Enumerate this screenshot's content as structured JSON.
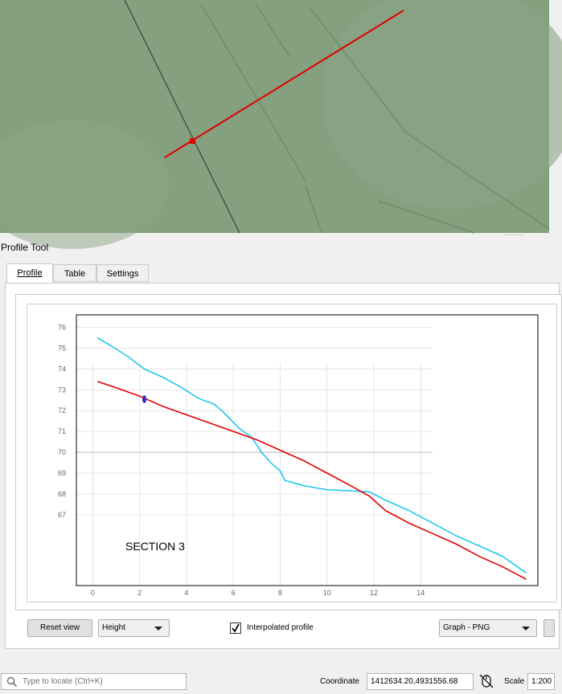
{
  "dock": {
    "title": "Profile Tool"
  },
  "tabs": [
    {
      "label": "Profile"
    },
    {
      "label": "Table"
    },
    {
      "label": "Settings"
    }
  ],
  "chart_overlay_label": "SECTION 3",
  "controls": {
    "reset_view": "Reset view",
    "height_combo": "Height",
    "interpolated_label": "Interpolated profile",
    "interpolated_checked": true,
    "export_combo": "Graph - PNG"
  },
  "statusbar": {
    "locator_placeholder": "Type to locate (Ctrl+K)",
    "coordinate_label": "Coordinate",
    "coordinate_value": "1412634.20,4931556.68",
    "scale_label": "Scale",
    "scale_value": "1:200"
  },
  "colors": {
    "map_bg": "#84a07f",
    "profile_red": "#e00000",
    "profile_cyan": "#20c8f0",
    "marker_blue": "#3030c0"
  },
  "chart_data": {
    "type": "line",
    "title": "",
    "xlabel": "",
    "ylabel": "",
    "x_ticks": [
      0,
      2,
      4,
      6,
      8,
      10,
      12,
      14
    ],
    "y_ticks": [
      76,
      75,
      74,
      73,
      72,
      71,
      70,
      69,
      68,
      67
    ],
    "xlim": [
      -0.7,
      19
    ],
    "ylim": [
      63.6,
      76.6
    ],
    "grid": true,
    "series": [
      {
        "color": "#20c8f0",
        "x": [
          0.2,
          0.8,
          1.5,
          2.2,
          3.0,
          3.8,
          4.5,
          5.2,
          5.6,
          6.2,
          6.8,
          7.2,
          7.6,
          8.0,
          8.2,
          9.0,
          10.0,
          11.0,
          11.8,
          12.5,
          13.5,
          14.5,
          15.5,
          16.5,
          17.5,
          18.5
        ],
        "y": [
          75.5,
          75.1,
          74.6,
          74.0,
          73.6,
          73.1,
          72.6,
          72.3,
          71.9,
          71.2,
          70.7,
          70.0,
          69.5,
          69.1,
          68.65,
          68.4,
          68.2,
          68.15,
          68.1,
          67.7,
          67.2,
          66.6,
          66.0,
          65.5,
          65.0,
          64.2
        ]
      },
      {
        "color": "#e00000",
        "x": [
          0.2,
          1.0,
          2.0,
          3.0,
          4.0,
          5.0,
          6.0,
          7.0,
          8.0,
          9.0,
          10.0,
          11.0,
          11.8,
          12.5,
          13.5,
          14.5,
          15.5,
          16.5,
          17.5,
          18.5
        ],
        "y": [
          73.4,
          73.1,
          72.7,
          72.2,
          71.8,
          71.4,
          71.0,
          70.6,
          70.1,
          69.6,
          69.0,
          68.4,
          67.9,
          67.2,
          66.6,
          66.1,
          65.6,
          65.0,
          64.5,
          63.9
        ]
      }
    ],
    "marker": {
      "x": 2.2,
      "y": 72.55
    }
  }
}
